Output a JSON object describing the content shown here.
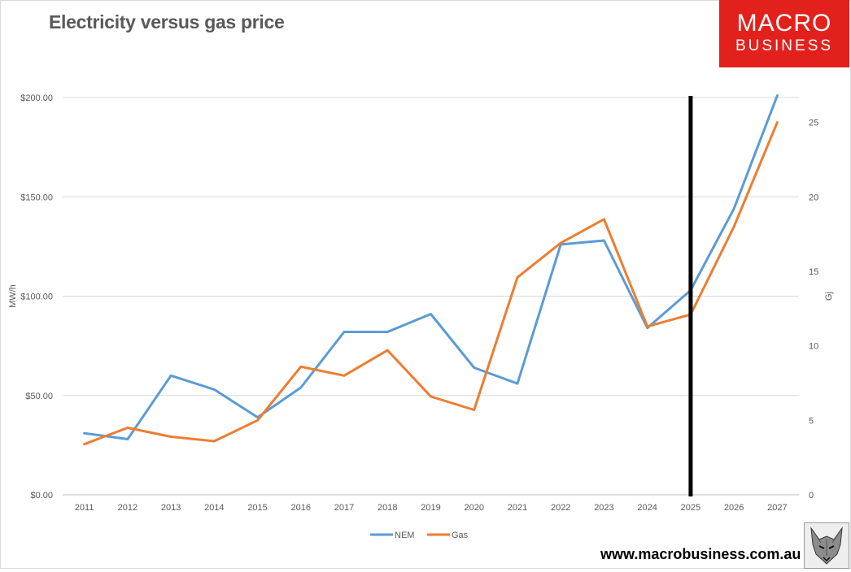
{
  "chart_data": {
    "type": "line",
    "title": "Electricity versus gas price",
    "categories": [
      "2011",
      "2012",
      "2013",
      "2014",
      "2015",
      "2016",
      "2017",
      "2018",
      "2019",
      "2020",
      "2021",
      "2022",
      "2023",
      "2024",
      "2025",
      "2026",
      "2027"
    ],
    "y_left": {
      "label": "MW/h",
      "range": [
        0,
        200
      ],
      "ticks": [
        0,
        50,
        100,
        150,
        200
      ],
      "tick_labels": [
        "$0.00",
        "$50.00",
        "$100.00",
        "$150.00",
        "$200.00"
      ]
    },
    "y_right": {
      "label": "Gj",
      "range": [
        0,
        26.67
      ],
      "ticks": [
        0,
        5,
        10,
        15,
        20,
        25
      ],
      "tick_labels": [
        "0",
        "5",
        "10",
        "15",
        "20",
        "25"
      ]
    },
    "series": [
      {
        "name": "NEM",
        "axis": "left",
        "color": "#5b9bd5",
        "values": [
          31,
          28,
          60,
          53,
          39,
          54,
          82,
          82,
          91,
          64,
          56,
          126,
          128,
          84,
          103,
          144,
          201
        ]
      },
      {
        "name": "Gas",
        "axis": "right",
        "color": "#ed7d31",
        "values": [
          3.4,
          4.5,
          3.9,
          3.6,
          5.0,
          8.6,
          8.0,
          9.7,
          6.6,
          5.7,
          14.6,
          16.9,
          18.5,
          11.3,
          12.1,
          18.0,
          25.0
        ]
      }
    ],
    "marker_line": {
      "at_category": "2025",
      "color": "#000000"
    },
    "grid": true,
    "legend": "bottom"
  },
  "branding": {
    "logo_line1": "MACRO",
    "logo_line2": "BUSINESS",
    "url": "www.macrobusiness.com.au"
  }
}
